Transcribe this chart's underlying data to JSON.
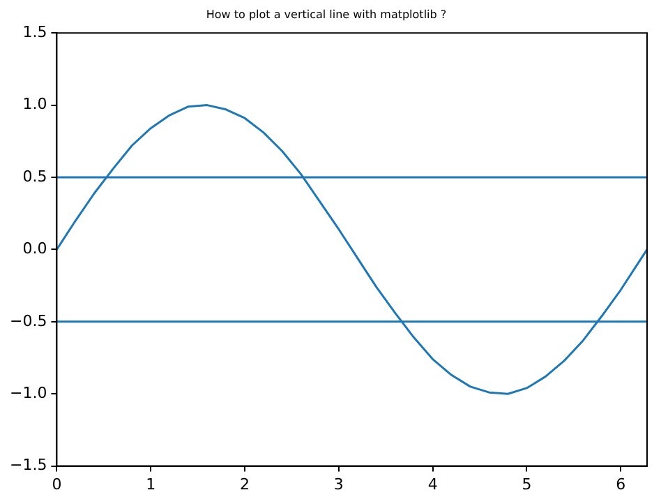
{
  "chart_data": {
    "type": "line",
    "title": "How to plot a vertical line with matplotlib ?",
    "x": [
      0,
      0.2,
      0.4,
      0.6,
      0.8,
      1.0,
      1.2,
      1.4,
      1.6,
      1.8,
      2.0,
      2.2,
      2.4,
      2.6,
      2.8,
      3.0,
      3.2,
      3.4,
      3.6,
      3.8,
      4.0,
      4.2,
      4.4,
      4.6,
      4.8,
      5.0,
      5.2,
      5.4,
      5.6,
      5.8,
      6.0,
      6.2,
      6.28
    ],
    "series": [
      {
        "color": "#1f77b4",
        "values": [
          0,
          0.2,
          0.39,
          0.56,
          0.72,
          0.84,
          0.93,
          0.99,
          1.0,
          0.97,
          0.91,
          0.81,
          0.68,
          0.52,
          0.33,
          0.14,
          -0.06,
          -0.26,
          -0.44,
          -0.61,
          -0.76,
          -0.87,
          -0.95,
          -0.99,
          -1.0,
          -0.96,
          -0.88,
          -0.77,
          -0.63,
          -0.46,
          -0.28,
          -0.08,
          0
        ]
      }
    ],
    "xlim": [
      0,
      6.28
    ],
    "xticks": [
      0,
      1,
      2,
      3,
      4,
      5,
      6
    ],
    "ylim": [
      -1.5,
      1.5
    ],
    "yticks": [
      {
        "value": -1.5,
        "label": "−1.5"
      },
      {
        "value": -1.0,
        "label": "−1.0"
      },
      {
        "value": -0.5,
        "label": "−0.5"
      },
      {
        "value": 0,
        "label": "0.0"
      },
      {
        "value": 0.5,
        "label": "0.5"
      },
      {
        "value": 1.0,
        "label": "1.0"
      },
      {
        "value": 1.5,
        "label": "1.5"
      }
    ],
    "ref_lines": [
      {
        "axis": "y",
        "value": 0.5,
        "color": "#1f77b4",
        "line_style": "solid"
      },
      {
        "axis": "y",
        "value": -0.5,
        "color": "#1f77b4",
        "line_style": "solid"
      }
    ],
    "grid": false,
    "legend": false,
    "marker": "none",
    "line_style": "solid"
  }
}
